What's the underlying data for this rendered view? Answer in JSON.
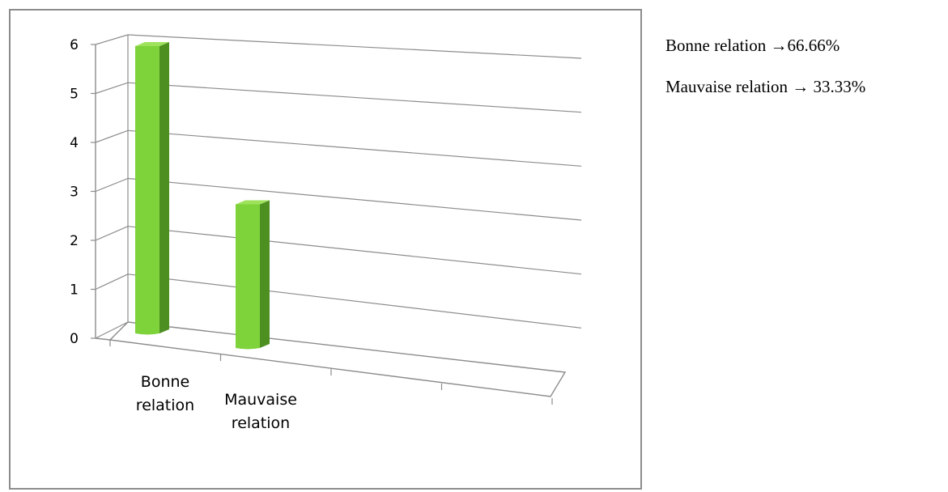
{
  "chart_data": {
    "type": "bar",
    "categories": [
      "Bonne relation",
      "Mauvaise relation"
    ],
    "category_lines": [
      [
        "Bonne",
        "relation"
      ],
      [
        "Mauvaise",
        "relation"
      ]
    ],
    "values": [
      6,
      3
    ],
    "ylim": [
      0,
      6
    ],
    "yticks": [
      "0",
      "1",
      "2",
      "3",
      "4",
      "5",
      "6"
    ],
    "grid": true,
    "style": "3d-column",
    "colors": {
      "bar_front": "#7ed23a",
      "bar_side": "#4e8f22",
      "bar_top": "#9ee25c",
      "grid": "#8c8c8c",
      "axis": "#8c8c8c"
    }
  },
  "notes": [
    {
      "label": "Bonne relation ",
      "arrow": "→",
      "value": "66.66%"
    },
    {
      "label": "Mauvaise relation ",
      "arrow": "→",
      "value": " 33.33%"
    }
  ]
}
